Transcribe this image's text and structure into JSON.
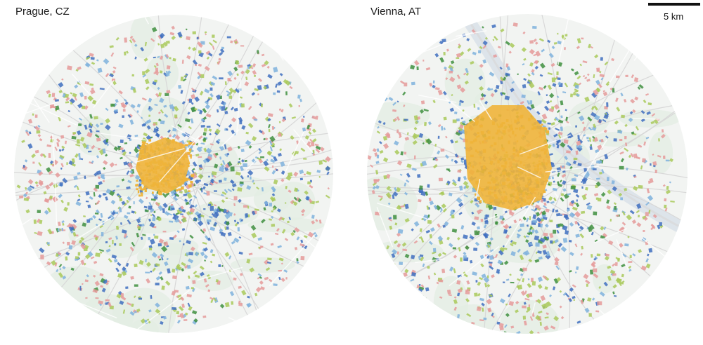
{
  "maps": [
    {
      "title": "Prague, CZ",
      "shape": "prague"
    },
    {
      "title": "Vienna, AT",
      "shape": "vienna"
    }
  ],
  "scale": {
    "label": "5 km"
  },
  "colors": {
    "background": "#f2f4f2",
    "green_area": "#e3eee3",
    "roads": "#ffffff",
    "rails": "#d8d8d8",
    "river": "#dde4ea",
    "historic_core": "#efb43a",
    "blue_dark": "#3f6fbf",
    "blue_light": "#7fb2dd",
    "green_dark": "#3f8f3f",
    "green_light": "#a9c95a",
    "red": "#e59a9a"
  }
}
